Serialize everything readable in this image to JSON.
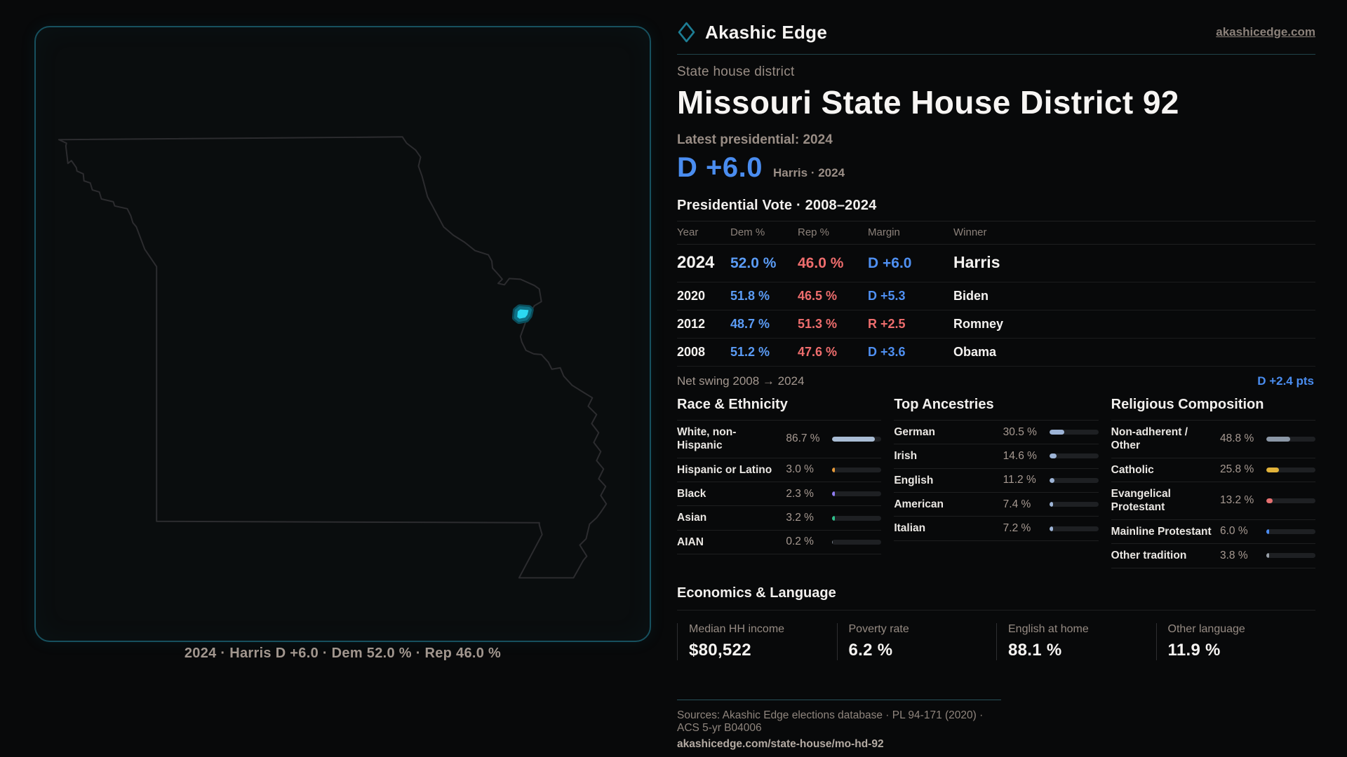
{
  "brand": {
    "name": "Akashic Edge",
    "domain": "akashicedge.com",
    "logo_color": "#1d7d94"
  },
  "page": {
    "kicker": "State house district",
    "title": "Missouri State House District 92"
  },
  "latest": {
    "label": "Latest presidential: 2024",
    "margin": "D +6.0",
    "context": "Harris · 2024"
  },
  "vote_table": {
    "title": "Presidential Vote · 2008–2024",
    "columns": {
      "year": "Year",
      "dem": "Dem %",
      "rep": "Rep %",
      "margin": "Margin",
      "winner": "Winner"
    },
    "rows": [
      {
        "year": "2024",
        "dem": "52.0 %",
        "rep": "46.0 %",
        "margin": "D +6.0",
        "margin_party": "D",
        "winner": "Harris"
      },
      {
        "year": "2020",
        "dem": "51.8 %",
        "rep": "46.5 %",
        "margin": "D +5.3",
        "margin_party": "D",
        "winner": "Biden"
      },
      {
        "year": "2012",
        "dem": "48.7 %",
        "rep": "51.3 %",
        "margin": "R +2.5",
        "margin_party": "R",
        "winner": "Romney"
      },
      {
        "year": "2008",
        "dem": "51.2 %",
        "rep": "47.6 %",
        "margin": "D +3.6",
        "margin_party": "D",
        "winner": "Obama"
      }
    ]
  },
  "net_swing": {
    "label": "Net swing 2008 → 2024",
    "value": "D +2.4 pts"
  },
  "demographics": {
    "sections": [
      {
        "title": "Race & Ethnicity",
        "rows": [
          {
            "label": "White, non-Hispanic",
            "value": "86.7 %",
            "pct": 86.7,
            "color": "#a9bcd4"
          },
          {
            "label": "Hispanic or Latino",
            "value": "3.0 %",
            "pct": 3.0,
            "color": "#e69a3a"
          },
          {
            "label": "Black",
            "value": "2.3 %",
            "pct": 2.3,
            "color": "#8f7cf0"
          },
          {
            "label": "Asian",
            "value": "3.2 %",
            "pct": 3.2,
            "color": "#2fc08c"
          },
          {
            "label": "AIAN",
            "value": "0.2 %",
            "pct": 0.2,
            "color": "#7a828c"
          }
        ]
      },
      {
        "title": "Top Ancestries",
        "rows": [
          {
            "label": "German",
            "value": "30.5 %",
            "pct": 30.5,
            "color": "#9db4d6"
          },
          {
            "label": "Irish",
            "value": "14.6 %",
            "pct": 14.6,
            "color": "#9db4d6"
          },
          {
            "label": "English",
            "value": "11.2 %",
            "pct": 11.2,
            "color": "#9db4d6"
          },
          {
            "label": "American",
            "value": "7.4 %",
            "pct": 7.4,
            "color": "#9db4d6"
          },
          {
            "label": "Italian",
            "value": "7.2 %",
            "pct": 7.2,
            "color": "#9db4d6"
          }
        ]
      },
      {
        "title": "Religious Composition",
        "rows": [
          {
            "label": "Non-adherent / Other",
            "value": "48.8 %",
            "pct": 48.8,
            "color": "#8b97a6"
          },
          {
            "label": "Catholic",
            "value": "25.8 %",
            "pct": 25.8,
            "color": "#e2b33a"
          },
          {
            "label": "Evangelical Protestant",
            "value": "13.2 %",
            "pct": 13.2,
            "color": "#e57070"
          },
          {
            "label": "Mainline Protestant",
            "value": "6.0 %",
            "pct": 6.0,
            "color": "#4b8cf2"
          },
          {
            "label": "Other tradition",
            "value": "3.8 %",
            "pct": 3.8,
            "color": "#99a0a8"
          }
        ]
      }
    ]
  },
  "economics": {
    "title": "Economics & Language",
    "stats": [
      {
        "label": "Median HH income",
        "value": "$80,522"
      },
      {
        "label": "Poverty rate",
        "value": "6.2 %"
      },
      {
        "label": "English at home",
        "value": "88.1 %"
      },
      {
        "label": "Other language",
        "value": "11.9 %"
      }
    ]
  },
  "footer": {
    "sources": "Sources: Akashic Edge elections database · PL 94-171 (2020) · ACS 5-yr B04006",
    "permalink": "akashicedge.com/state-house/mo-hd-92"
  },
  "map": {
    "caption": "2024 · Harris D +6.0 · Dem 52.0 % · Rep 46.0 %",
    "district_fill": "#2bd9f2",
    "district_ring": "#0e7186",
    "outline_color": "#2c2c2f",
    "panel_border": "#17505e"
  }
}
